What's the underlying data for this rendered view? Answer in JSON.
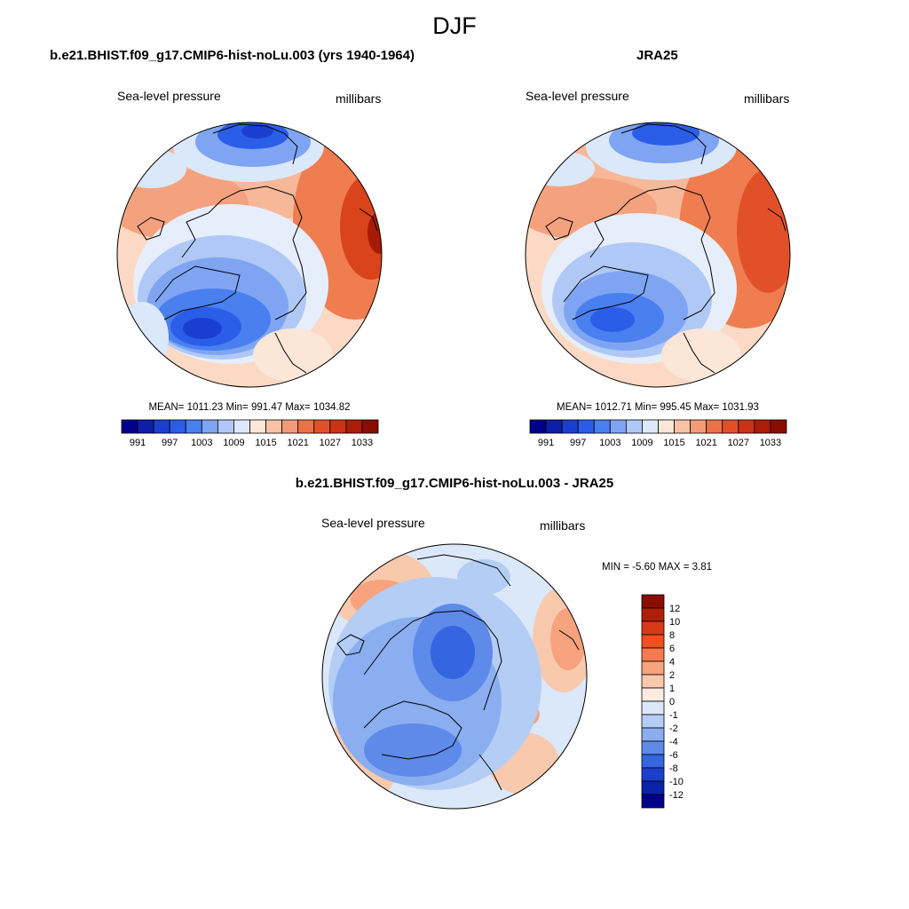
{
  "figure": {
    "title": "DJF"
  },
  "panels": [
    {
      "title": "b.e21.BHIST.f09_g17.CMIP6-hist-noLu.003 (yrs 1940-1964)",
      "left_label": "Sea-level pressure",
      "right_label": "millibars",
      "stats": "MEAN= 1011.23  Min= 991.47  Max= 1034.82",
      "colorbar": {
        "orientation": "horizontal",
        "tick_labels": [
          "991",
          "997",
          "1003",
          "1009",
          "1015",
          "1021",
          "1027",
          "1033"
        ],
        "colors": [
          "#00008b",
          "#0d1fa8",
          "#1a3fd0",
          "#2a5ee8",
          "#4a7ff0",
          "#7fa5f2",
          "#b0c8f5",
          "#dde9fb",
          "#fbe6d8",
          "#f7c2a5",
          "#f29b76",
          "#ec7248",
          "#e2502a",
          "#cc3214",
          "#ad1c08",
          "#8a0d02"
        ]
      }
    },
    {
      "title": "JRA25",
      "left_label": "Sea-level pressure",
      "right_label": "millibars",
      "stats": "MEAN= 1012.71  Min= 995.45  Max= 1031.93",
      "colorbar": {
        "orientation": "horizontal",
        "tick_labels": [
          "991",
          "997",
          "1003",
          "1009",
          "1015",
          "1021",
          "1027",
          "1033"
        ],
        "colors": [
          "#00008b",
          "#0d1fa8",
          "#1a3fd0",
          "#2a5ee8",
          "#4a7ff0",
          "#7fa5f2",
          "#b0c8f5",
          "#dde9fb",
          "#fbe6d8",
          "#f7c2a5",
          "#f29b76",
          "#ec7248",
          "#e2502a",
          "#cc3214",
          "#ad1c08",
          "#8a0d02"
        ]
      }
    },
    {
      "title": "b.e21.BHIST.f09_g17.CMIP6-hist-noLu.003 - JRA25",
      "left_label": "Sea-level pressure",
      "right_label": "millibars",
      "stats": "MIN =  -5.60 MAX =   3.81",
      "colorbar": {
        "orientation": "vertical",
        "tick_labels": [
          "12",
          "10",
          "8",
          "6",
          "4",
          "2",
          "1",
          "0",
          "-1",
          "-2",
          "-4",
          "-6",
          "-8",
          "-10",
          "-12"
        ],
        "colors": [
          "#8a0d02",
          "#b01e08",
          "#d63a18",
          "#f0501e",
          "#f57a4e",
          "#f7a37e",
          "#f9c9ad",
          "#fcebe0",
          "#dbe8fa",
          "#b4cdf5",
          "#8aaef0",
          "#5e8aea",
          "#3565e0",
          "#1b40cc",
          "#0a22a8",
          "#00008b"
        ]
      }
    }
  ]
}
